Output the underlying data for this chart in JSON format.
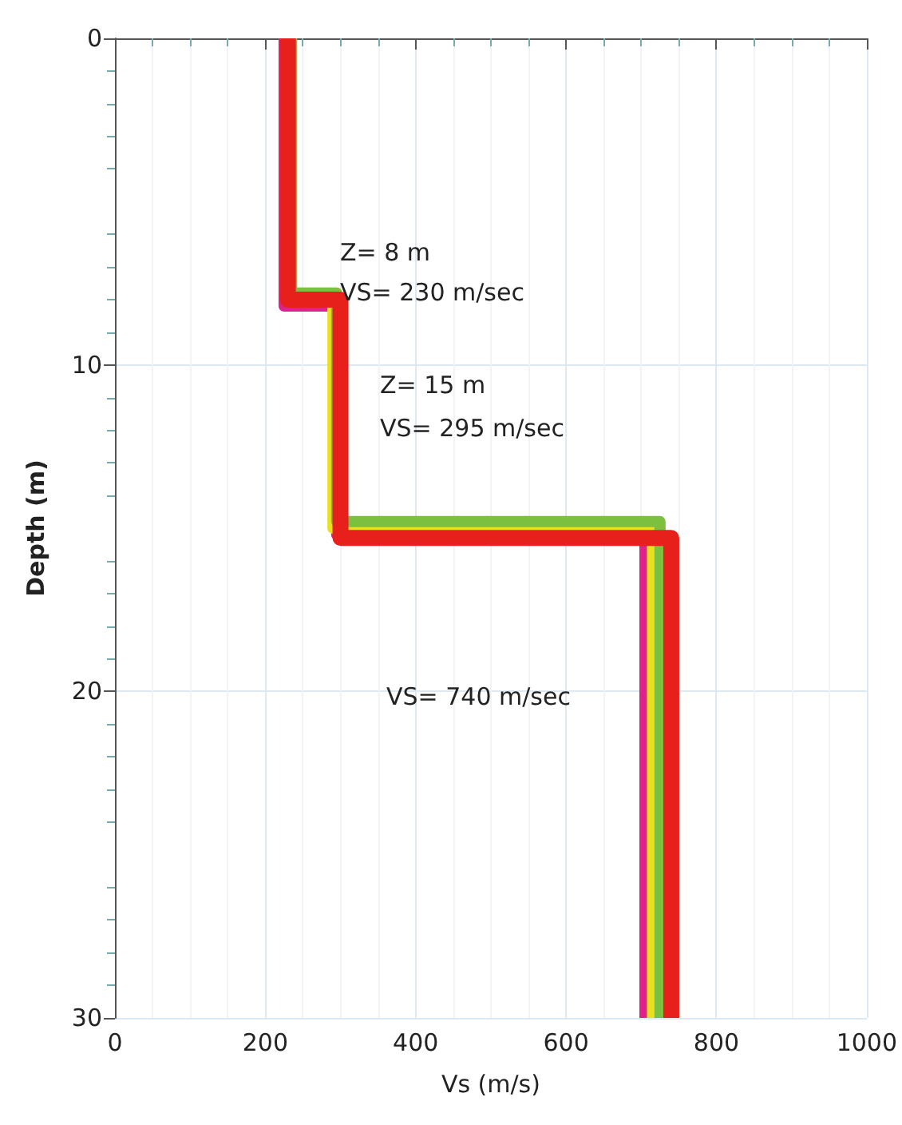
{
  "chart_data": {
    "type": "line",
    "xlabel": "Vs (m/s)",
    "ylabel": "Depth (m)",
    "xlim": [
      0,
      1000
    ],
    "xticks": [
      0,
      200,
      400,
      600,
      800,
      1000
    ],
    "ylim": [
      30,
      0
    ],
    "yticks": [
      0,
      10,
      20,
      30
    ],
    "grid": true,
    "marker": "none",
    "line_style": "solid",
    "series": [
      {
        "color": "#e0208c",
        "x": [
          225,
          225,
          295,
          295,
          705,
          705
        ],
        "values": [
          0,
          8.2,
          8.2,
          15.2,
          15.2,
          30
        ]
      },
      {
        "color": "#e8e020",
        "x": [
          230,
          230,
          290,
          290,
          715,
          715
        ],
        "values": [
          0,
          7.9,
          7.9,
          15,
          15,
          30
        ]
      },
      {
        "color": "#7cc040",
        "x": [
          235,
          235,
          295,
          295,
          725,
          725
        ],
        "values": [
          0,
          7.8,
          7.8,
          14.8,
          14.8,
          30
        ]
      },
      {
        "color": "#e8201c",
        "x": [
          230,
          230,
          300,
          300,
          740,
          740
        ],
        "values": [
          0,
          8,
          8,
          15.3,
          15.3,
          30
        ]
      }
    ],
    "annotations": [
      "Z= 8 m",
      "VS= 230 m/sec",
      "Z= 15 m",
      "VS= 295 m/sec",
      "VS= 740 m/sec"
    ]
  }
}
